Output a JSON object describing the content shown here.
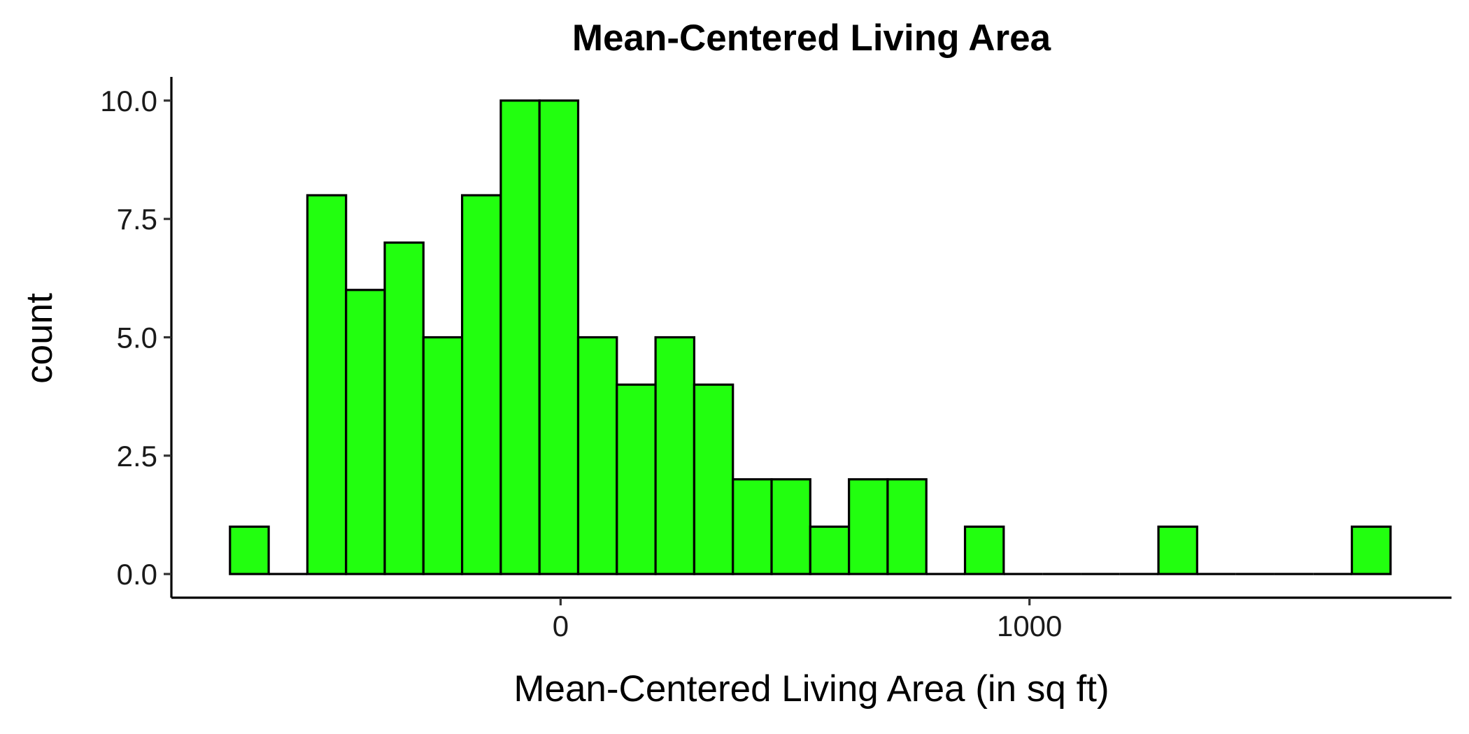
{
  "chart_data": {
    "type": "bar",
    "title": "Mean-Centered Living Area",
    "xlabel": "Mean-Centered Living Area (in sq ft)",
    "ylabel": "count",
    "fill_color": "#22ff0f",
    "outline_color": "#000000",
    "background": "#ffffff",
    "grid": false,
    "legend": "none",
    "bin_width": 82.5,
    "bins": [
      {
        "start": -705,
        "end": -622.5,
        "count": 1
      },
      {
        "start": -622.5,
        "end": -540,
        "count": 0
      },
      {
        "start": -540,
        "end": -457.5,
        "count": 8
      },
      {
        "start": -457.5,
        "end": -375,
        "count": 6
      },
      {
        "start": -375,
        "end": -292.5,
        "count": 7
      },
      {
        "start": -292.5,
        "end": -210,
        "count": 5
      },
      {
        "start": -210,
        "end": -127.5,
        "count": 8
      },
      {
        "start": -127.5,
        "end": -45,
        "count": 10
      },
      {
        "start": -45,
        "end": 37.5,
        "count": 10
      },
      {
        "start": 37.5,
        "end": 120,
        "count": 5
      },
      {
        "start": 120,
        "end": 202.5,
        "count": 4
      },
      {
        "start": 202.5,
        "end": 285,
        "count": 5
      },
      {
        "start": 285,
        "end": 367.5,
        "count": 4
      },
      {
        "start": 367.5,
        "end": 450,
        "count": 2
      },
      {
        "start": 450,
        "end": 532.5,
        "count": 2
      },
      {
        "start": 532.5,
        "end": 615,
        "count": 1
      },
      {
        "start": 615,
        "end": 697.5,
        "count": 2
      },
      {
        "start": 697.5,
        "end": 780,
        "count": 2
      },
      {
        "start": 780,
        "end": 862.5,
        "count": 0
      },
      {
        "start": 862.5,
        "end": 945,
        "count": 1
      },
      {
        "start": 945,
        "end": 1027.5,
        "count": 0
      },
      {
        "start": 1027.5,
        "end": 1110,
        "count": 0
      },
      {
        "start": 1110,
        "end": 1192.5,
        "count": 0
      },
      {
        "start": 1192.5,
        "end": 1275,
        "count": 0
      },
      {
        "start": 1275,
        "end": 1357.5,
        "count": 1
      },
      {
        "start": 1357.5,
        "end": 1440,
        "count": 0
      },
      {
        "start": 1440,
        "end": 1522.5,
        "count": 0
      },
      {
        "start": 1522.5,
        "end": 1605,
        "count": 0
      },
      {
        "start": 1605,
        "end": 1687.5,
        "count": 0
      },
      {
        "start": 1687.5,
        "end": 1770,
        "count": 1
      }
    ],
    "xlim": [
      -830,
      1900
    ],
    "ylim": [
      -0.5,
      10.5
    ],
    "x_ticks": [
      {
        "value": 0,
        "label": "0"
      },
      {
        "value": 1000,
        "label": "1000"
      }
    ],
    "y_ticks": [
      {
        "value": 0,
        "label": "0.0"
      },
      {
        "value": 2.5,
        "label": "2.5"
      },
      {
        "value": 5,
        "label": "5.0"
      },
      {
        "value": 7.5,
        "label": "7.5"
      },
      {
        "value": 10,
        "label": "10.0"
      }
    ]
  }
}
